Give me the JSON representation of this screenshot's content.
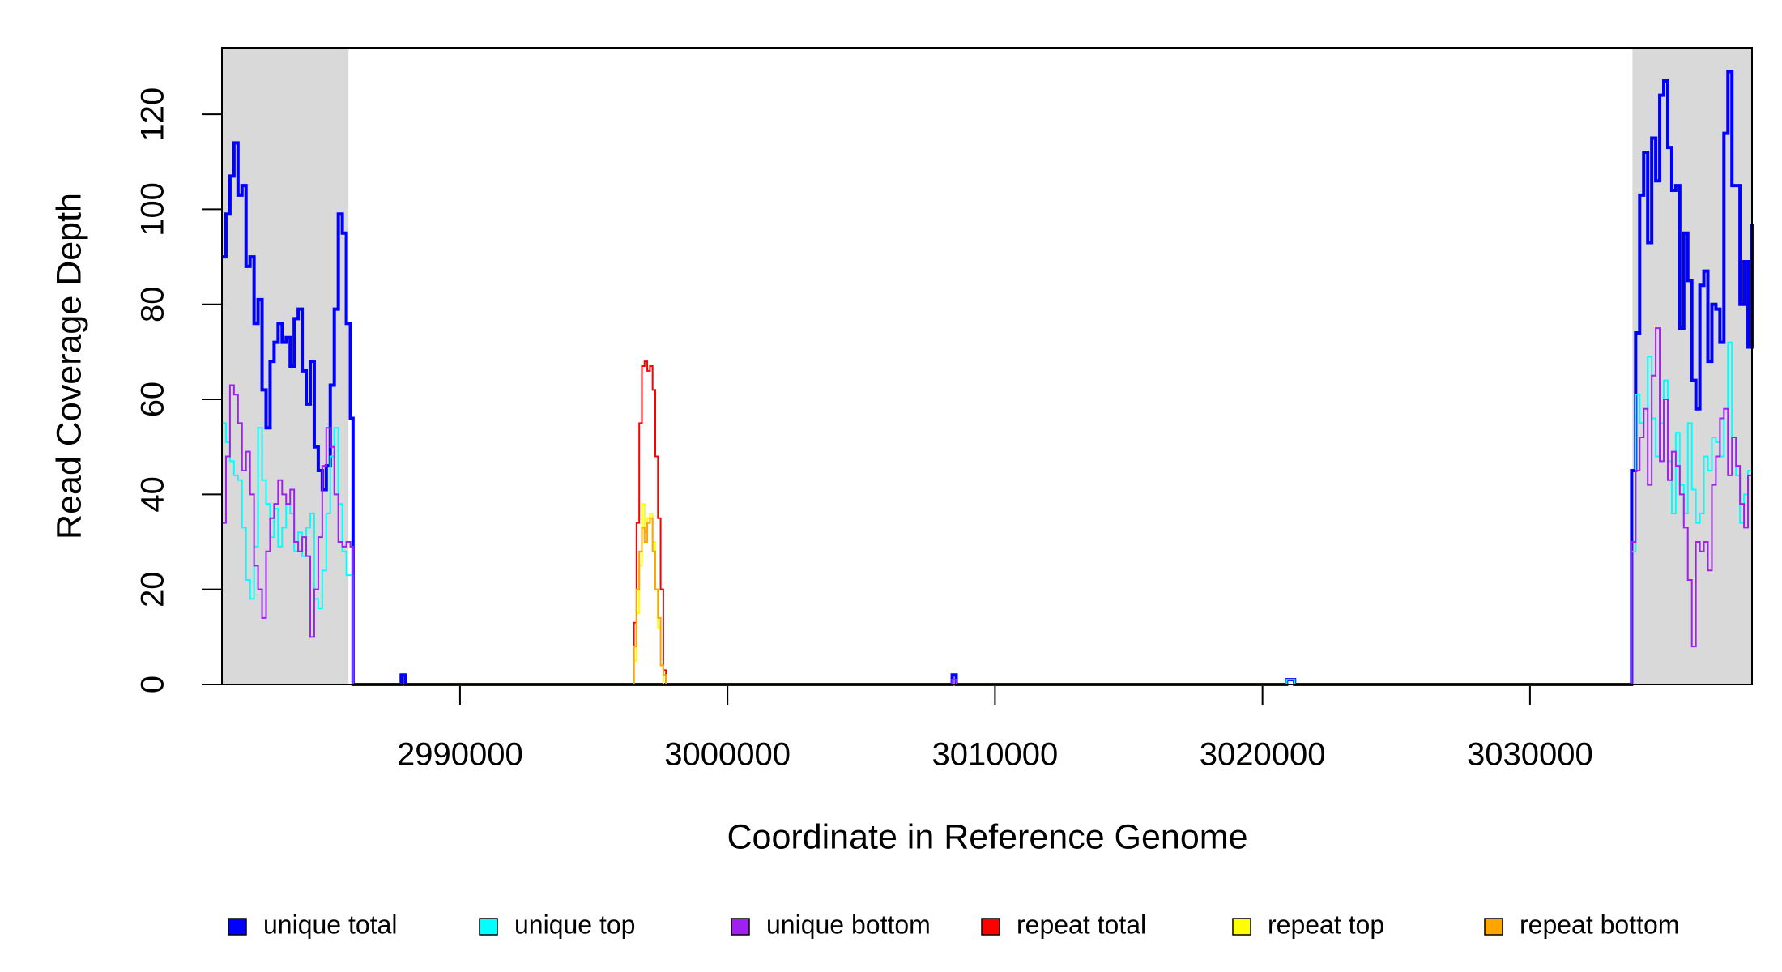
{
  "chart_data": {
    "type": "step",
    "xlabel": "Coordinate in Reference Genome",
    "ylabel": "Read Coverage Depth",
    "xlim": [
      2981100,
      3038300
    ],
    "ylim": [
      0,
      134
    ],
    "xticks": [
      2990000,
      3000000,
      3010000,
      3020000,
      3030000
    ],
    "yticks": [
      0,
      20,
      40,
      60,
      80,
      100,
      120
    ],
    "shaded_regions": [
      [
        2981100,
        2985830
      ],
      [
        3033830,
        3038300
      ]
    ],
    "legend": "bottom",
    "x": [
      2981100,
      2981250,
      2981400,
      2981550,
      2981700,
      2981850,
      2982000,
      2982150,
      2982300,
      2982450,
      2982600,
      2982750,
      2982900,
      2983050,
      2983200,
      2983350,
      2983500,
      2983650,
      2983800,
      2983950,
      2984100,
      2984250,
      2984400,
      2984550,
      2984700,
      2984850,
      2985000,
      2985150,
      2985300,
      2985450,
      2985600,
      2985750,
      2985900,
      2986000,
      2987800,
      2987950,
      2996500,
      2996600,
      2996700,
      2996800,
      2996900,
      2997000,
      2997100,
      2997200,
      2997300,
      2997400,
      2997500,
      2997600,
      2997700,
      2997800,
      2997900,
      3008400,
      3008550,
      3020900,
      3021200,
      3033650,
      3033800,
      3033950,
      3034100,
      3034250,
      3034400,
      3034550,
      3034700,
      3034850,
      3035000,
      3035150,
      3035300,
      3035450,
      3035600,
      3035750,
      3035900,
      3036050,
      3036200,
      3036350,
      3036500,
      3036650,
      3036800,
      3036950,
      3037100,
      3037250,
      3037400,
      3037550,
      3037700,
      3037850,
      3038000,
      3038150,
      3038300
    ],
    "series": [
      {
        "name": "unique total",
        "color": "#0000ff",
        "values": [
          90,
          99,
          107,
          114,
          103,
          105,
          88,
          90,
          76,
          81,
          62,
          54,
          68,
          72,
          76,
          72,
          73,
          67,
          77,
          79,
          66,
          59,
          68,
          50,
          45,
          41,
          46,
          63,
          79,
          99,
          95,
          76,
          56,
          0,
          2,
          0,
          0,
          0,
          0,
          0,
          0,
          0,
          0,
          0,
          0,
          0,
          0,
          0,
          0,
          0,
          0,
          2,
          0,
          1,
          0,
          0,
          45,
          74,
          103,
          112,
          93,
          115,
          106,
          124,
          127,
          113,
          104,
          105,
          75,
          95,
          85,
          64,
          58,
          84,
          87,
          68,
          80,
          79,
          72,
          116,
          129,
          105,
          105,
          80,
          89,
          71,
          97
        ]
      },
      {
        "name": "unique top",
        "color": "#00ffff",
        "values": [
          55,
          51,
          47,
          44,
          43,
          33,
          22,
          18,
          29,
          54,
          43,
          38,
          31,
          37,
          29,
          33,
          38,
          36,
          28,
          32,
          27,
          33,
          36,
          18,
          16,
          24,
          36,
          48,
          54,
          38,
          28,
          23,
          23,
          0,
          0,
          0,
          0,
          0,
          0,
          0,
          0,
          0,
          0,
          0,
          0,
          0,
          0,
          0,
          0,
          0,
          0,
          1,
          0,
          1,
          0,
          0,
          28,
          61,
          55,
          58,
          69,
          56,
          48,
          55,
          64,
          47,
          36,
          53,
          42,
          36,
          55,
          41,
          34,
          36,
          48,
          45,
          52,
          51,
          48,
          58,
          72,
          52,
          44,
          34,
          40,
          45,
          53
        ]
      },
      {
        "name": "unique bottom",
        "color": "#a020f0",
        "values": [
          34,
          48,
          63,
          61,
          55,
          45,
          49,
          40,
          25,
          20,
          14,
          28,
          35,
          38,
          43,
          40,
          38,
          41,
          30,
          28,
          31,
          27,
          10,
          20,
          31,
          46,
          54,
          50,
          40,
          30,
          29,
          30,
          29,
          0,
          0,
          0,
          0,
          0,
          0,
          0,
          0,
          0,
          0,
          0,
          0,
          0,
          0,
          0,
          0,
          0,
          0,
          1,
          0,
          0,
          0,
          0,
          30,
          45,
          52,
          58,
          42,
          65,
          75,
          47,
          60,
          43,
          49,
          46,
          40,
          33,
          22,
          8,
          30,
          28,
          30,
          24,
          42,
          48,
          56,
          58,
          44,
          52,
          46,
          38,
          33,
          44,
          49
        ]
      },
      {
        "name": "repeat total",
        "color": "#ff0000",
        "values": [
          0,
          0,
          0,
          0,
          0,
          0,
          0,
          0,
          0,
          0,
          0,
          0,
          0,
          0,
          0,
          0,
          0,
          0,
          0,
          0,
          0,
          0,
          0,
          0,
          0,
          0,
          0,
          0,
          0,
          0,
          0,
          0,
          0,
          0,
          0,
          0,
          13,
          34,
          55,
          67,
          68,
          66,
          67,
          62,
          48,
          35,
          20,
          3,
          0,
          0,
          0,
          0,
          0,
          0,
          0,
          0,
          0,
          0,
          0,
          0,
          0,
          0,
          0,
          0,
          0,
          0,
          0,
          0,
          0,
          0,
          0,
          0,
          0,
          0,
          0,
          0,
          0,
          0,
          0,
          0,
          0,
          0,
          0,
          0,
          0,
          0,
          0
        ]
      },
      {
        "name": "repeat top",
        "color": "#ffff00",
        "values": [
          0,
          0,
          0,
          0,
          0,
          0,
          0,
          0,
          0,
          0,
          0,
          0,
          0,
          0,
          0,
          0,
          0,
          0,
          0,
          0,
          0,
          0,
          0,
          0,
          0,
          0,
          0,
          0,
          0,
          0,
          0,
          0,
          0,
          0,
          0,
          0,
          5,
          15,
          25,
          38,
          32,
          35,
          36,
          30,
          20,
          12,
          4,
          0,
          0,
          0,
          0,
          0,
          0,
          0,
          0,
          0,
          0,
          0,
          0,
          0,
          0,
          0,
          0,
          0,
          0,
          0,
          0,
          0,
          0,
          0,
          0,
          0,
          0,
          0,
          0,
          0,
          0,
          0,
          0,
          0,
          0,
          0,
          0,
          0,
          0,
          0,
          0
        ]
      },
      {
        "name": "repeat bottom",
        "color": "#ffa500",
        "values": [
          0,
          0,
          0,
          0,
          0,
          0,
          0,
          0,
          0,
          0,
          0,
          0,
          0,
          0,
          0,
          0,
          0,
          0,
          0,
          0,
          0,
          0,
          0,
          0,
          0,
          0,
          0,
          0,
          0,
          0,
          0,
          0,
          0,
          0,
          0,
          0,
          8,
          20,
          28,
          33,
          30,
          34,
          35,
          28,
          20,
          14,
          4,
          2,
          0,
          0,
          0,
          0,
          0,
          0,
          0,
          0,
          0,
          0,
          0,
          0,
          0,
          0,
          0,
          0,
          0,
          0,
          0,
          0,
          0,
          0,
          0,
          0,
          0,
          0,
          0,
          0,
          0,
          0,
          0,
          0,
          0,
          0,
          0,
          0,
          0,
          0,
          0
        ]
      }
    ]
  }
}
